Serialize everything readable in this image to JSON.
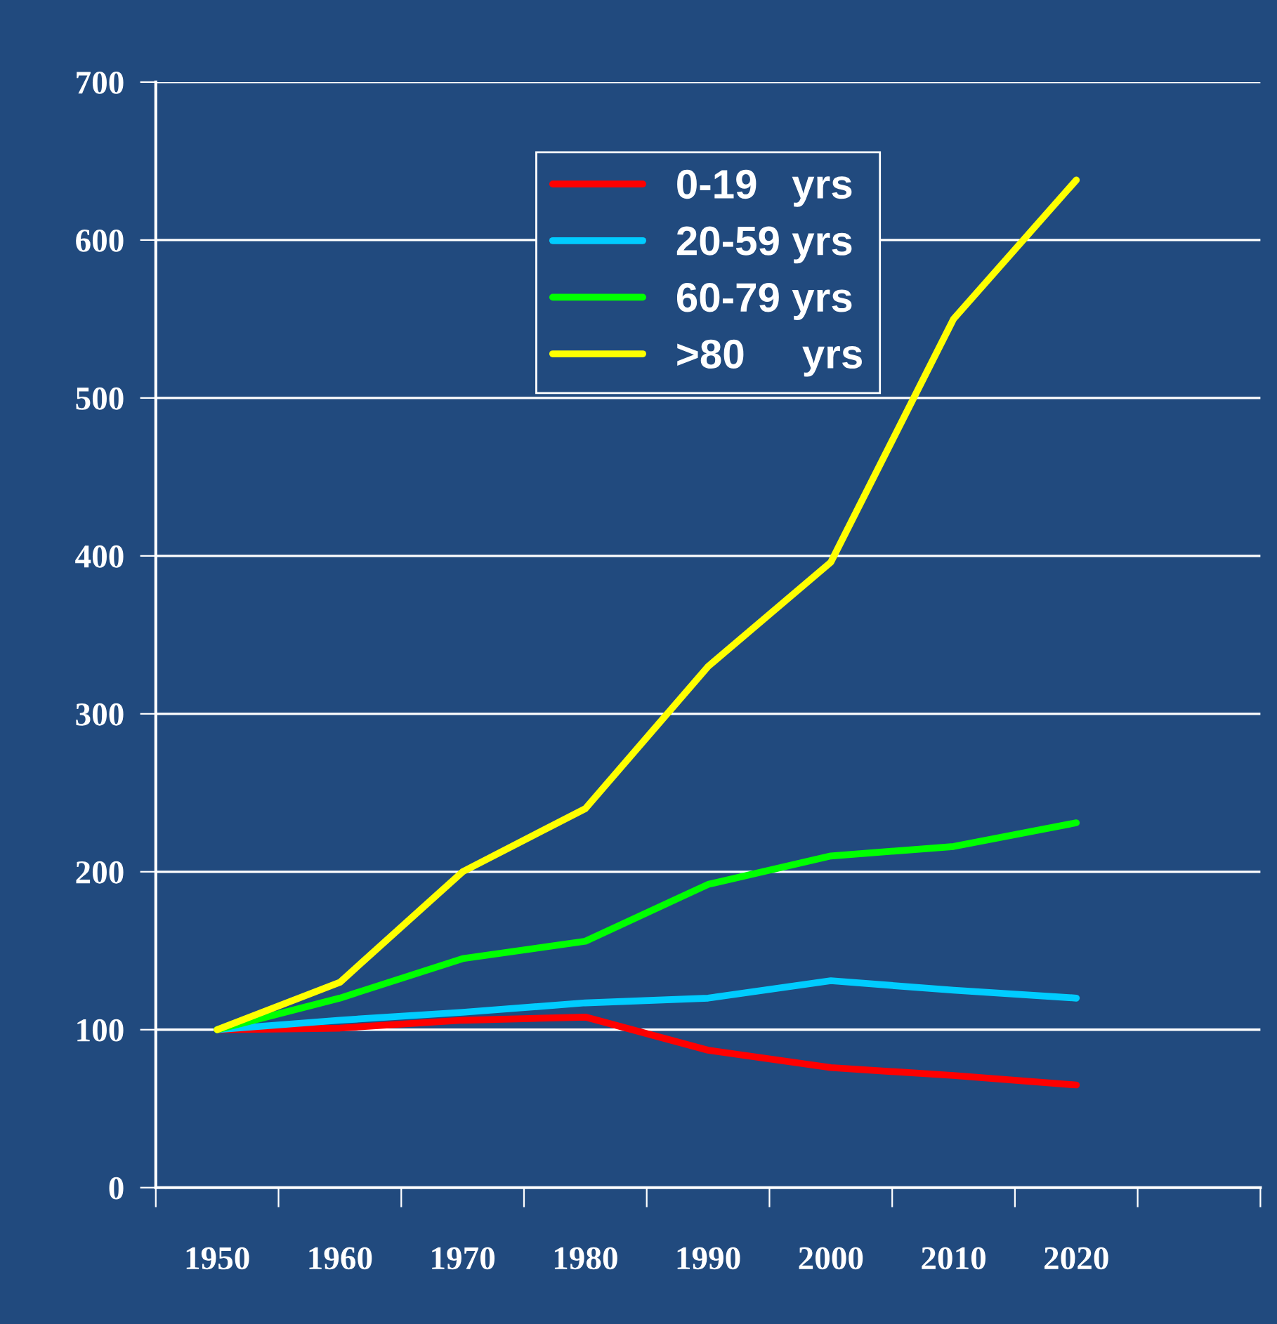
{
  "chart_data": {
    "type": "line",
    "categories": [
      "1950",
      "1960",
      "1970",
      "1980",
      "1990",
      "2000",
      "2010",
      "2020",
      null
    ],
    "series": [
      {
        "name": "0-19   yrs",
        "color": "#ff0000",
        "values": [
          100,
          101,
          106,
          108,
          87,
          76,
          71,
          65,
          null
        ]
      },
      {
        "name": "20-59 yrs",
        "color": "#00ccff",
        "values": [
          100,
          106,
          111,
          117,
          120,
          131,
          125,
          120,
          null
        ]
      },
      {
        "name": "60-79 yrs",
        "color": "#00ff00",
        "values": [
          100,
          120,
          145,
          156,
          192,
          210,
          216,
          231,
          null
        ]
      },
      {
        "name": ">80     yrs",
        "color": "#ffff00",
        "values": [
          100,
          130,
          200,
          240,
          330,
          396,
          550,
          638,
          null
        ]
      }
    ],
    "ylim": [
      0,
      700
    ],
    "yticks": [
      0,
      100,
      200,
      300,
      400,
      500,
      600,
      700
    ],
    "grid": "y",
    "legend": "top",
    "marker": "none",
    "line_style": "solid"
  }
}
